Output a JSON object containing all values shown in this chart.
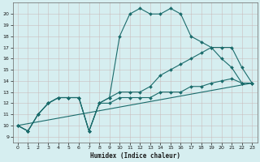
{
  "xlabel": "Humidex (Indice chaleur)",
  "bg_color": "#d6eef0",
  "grid_color": "#c8dfe0",
  "line_color": "#1a6b6b",
  "xlim": [
    -0.5,
    23.5
  ],
  "ylim": [
    8.5,
    21.0
  ],
  "xticks": [
    0,
    1,
    2,
    3,
    4,
    5,
    6,
    7,
    8,
    9,
    10,
    11,
    12,
    13,
    14,
    15,
    16,
    17,
    18,
    19,
    20,
    21,
    22,
    23
  ],
  "yticks": [
    9,
    10,
    11,
    12,
    13,
    14,
    15,
    16,
    17,
    18,
    19,
    20
  ],
  "series": [
    {
      "x": [
        0,
        1,
        2,
        3,
        4,
        5,
        6,
        7,
        8,
        9,
        10,
        11,
        12,
        13,
        14,
        15,
        16,
        17,
        18,
        19,
        20,
        21,
        22,
        23
      ],
      "y": [
        10,
        9.5,
        11,
        12,
        12.5,
        12.5,
        12.5,
        9.5,
        12,
        12.5,
        18,
        20,
        20.5,
        20,
        20,
        20.5,
        20,
        18,
        17.5,
        17,
        16,
        15.2,
        13.8,
        13.8
      ],
      "has_markers": true
    },
    {
      "x": [
        0,
        1,
        2,
        3,
        4,
        5,
        6,
        7,
        8,
        9,
        10,
        11,
        12,
        13,
        14,
        15,
        16,
        17,
        18,
        19,
        20,
        21,
        22,
        23
      ],
      "y": [
        10,
        9.5,
        11,
        12,
        12.5,
        12.5,
        12.5,
        9.5,
        12,
        12.5,
        13,
        13,
        13,
        13.5,
        14.5,
        15,
        15.5,
        16,
        16.5,
        17,
        17,
        17,
        15.2,
        13.8
      ],
      "has_markers": true
    },
    {
      "x": [
        0,
        1,
        2,
        3,
        4,
        5,
        6,
        7,
        8,
        9,
        10,
        11,
        12,
        13,
        14,
        15,
        16,
        17,
        18,
        19,
        20,
        21,
        22,
        23
      ],
      "y": [
        10,
        9.5,
        11,
        12,
        12.5,
        12.5,
        12.5,
        9.5,
        12,
        12,
        12.5,
        12.5,
        12.5,
        12.5,
        13,
        13,
        13,
        13.5,
        13.5,
        13.8,
        14,
        14.2,
        13.8,
        13.8
      ],
      "has_markers": true
    },
    {
      "x": [
        0,
        23
      ],
      "y": [
        10,
        13.8
      ],
      "has_markers": false
    }
  ],
  "marker": "D",
  "markersize": 2.0,
  "linewidth": 0.8
}
